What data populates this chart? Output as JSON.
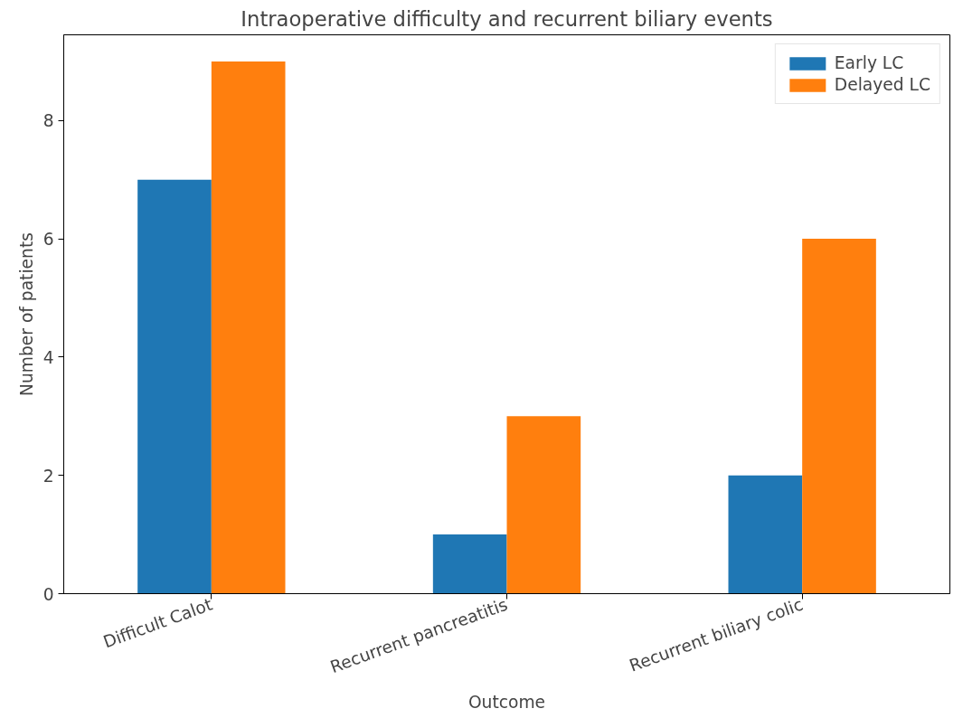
{
  "chart_data": {
    "type": "bar",
    "title": "Intraoperative difficulty and recurrent biliary events",
    "xlabel": "Outcome",
    "ylabel": "Number of patients",
    "categories": [
      "Difficult Calot",
      "Recurrent pancreatitis",
      "Recurrent biliary colic"
    ],
    "series": [
      {
        "name": "Early LC",
        "color": "#1f77b4",
        "values": [
          7,
          1,
          2
        ]
      },
      {
        "name": "Delayed LC",
        "color": "#ff7f0e",
        "values": [
          9,
          3,
          6
        ]
      }
    ],
    "ylim": [
      0,
      9.45
    ],
    "yticks": [
      0,
      2,
      4,
      6,
      8
    ],
    "grid": false,
    "legend": "top right"
  }
}
